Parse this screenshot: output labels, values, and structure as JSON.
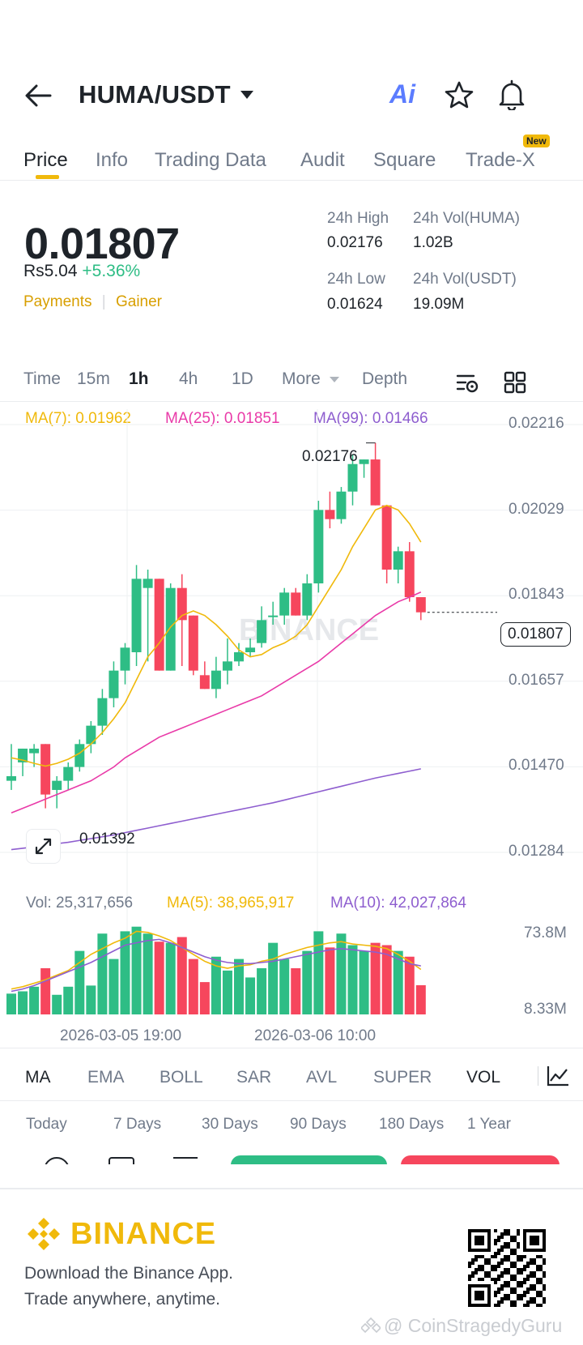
{
  "header": {
    "pair": "HUMA/USDT",
    "ai_label": "Ai"
  },
  "tabs": [
    {
      "label": "Price",
      "active": true
    },
    {
      "label": "Info"
    },
    {
      "label": "Trading Data"
    },
    {
      "label": "Audit"
    },
    {
      "label": "Square"
    },
    {
      "label": "Trade-X",
      "badge": "New"
    }
  ],
  "price": {
    "last": "0.01807",
    "fiat": "Rs5.04",
    "change": "+5.36%",
    "tags": [
      "Payments",
      "Gainer"
    ]
  },
  "stats": {
    "high_label": "24h High",
    "high": "0.02176",
    "vol_base_label": "24h Vol(HUMA)",
    "vol_base": "1.02B",
    "low_label": "24h Low",
    "low": "0.01624",
    "vol_quote_label": "24h Vol(USDT)",
    "vol_quote": "19.09M"
  },
  "intervals": {
    "items": [
      "Time",
      "15m",
      "1h",
      "4h",
      "1D",
      "More",
      "Depth"
    ],
    "active": "1h"
  },
  "ma_legend": {
    "ma7": "MA(7): 0.01962",
    "ma25": "MA(25): 0.01851",
    "ma99": "MA(99): 0.01466"
  },
  "price_axis": [
    "0.02216",
    "0.02029",
    "0.01843",
    "0.01657",
    "0.01470",
    "0.01284"
  ],
  "markers": {
    "high": "0.02176",
    "low": "0.01392",
    "current": "0.01807"
  },
  "watermark": "BINANCE",
  "volume_legend": {
    "vol": "Vol: 25,317,656",
    "ma5": "MA(5): 38,965,917",
    "ma10": "MA(10): 42,027,864"
  },
  "volume_axis": [
    "73.8M",
    "8.33M"
  ],
  "time_axis": [
    "2026-03-05 19:00",
    "2026-03-06 10:00"
  ],
  "indicators": {
    "items": [
      "MA",
      "EMA",
      "BOLL",
      "SAR",
      "AVL",
      "SUPER",
      "VOL"
    ],
    "active": [
      "MA",
      "VOL"
    ]
  },
  "performance": [
    "Today",
    "7 Days",
    "30 Days",
    "90 Days",
    "180 Days",
    "1 Year"
  ],
  "footer": {
    "brand": "BINANCE",
    "line1": "Download the Binance App.",
    "line2": "Trade anywhere, anytime.",
    "credit": "@ CoinStragedyGuru"
  },
  "colors": {
    "up": "#2ebd85",
    "down": "#f6465d",
    "ma7": "#f0b90b",
    "ma25": "#e93aa8",
    "ma99": "#8e5ecf",
    "brand": "#f0b90b"
  },
  "chart_data": {
    "type": "candlestick",
    "interval": "1h",
    "ylim": [
      0.01284,
      0.02216
    ],
    "candles": [
      {
        "o": 0.0144,
        "h": 0.0152,
        "l": 0.0142,
        "c": 0.0145
      },
      {
        "o": 0.0148,
        "h": 0.0151,
        "l": 0.0145,
        "c": 0.0151
      },
      {
        "o": 0.015,
        "h": 0.0152,
        "l": 0.0147,
        "c": 0.0151
      },
      {
        "o": 0.0152,
        "h": 0.0152,
        "l": 0.0138,
        "c": 0.0141
      },
      {
        "o": 0.0142,
        "h": 0.0145,
        "l": 0.0138,
        "c": 0.0144
      },
      {
        "o": 0.0144,
        "h": 0.0148,
        "l": 0.0142,
        "c": 0.0147
      },
      {
        "o": 0.0147,
        "h": 0.0153,
        "l": 0.0146,
        "c": 0.0152
      },
      {
        "o": 0.0152,
        "h": 0.0157,
        "l": 0.015,
        "c": 0.0156
      },
      {
        "o": 0.0156,
        "h": 0.0164,
        "l": 0.0154,
        "c": 0.0162
      },
      {
        "o": 0.0162,
        "h": 0.017,
        "l": 0.016,
        "c": 0.0168
      },
      {
        "o": 0.0168,
        "h": 0.0174,
        "l": 0.0165,
        "c": 0.0173
      },
      {
        "o": 0.0172,
        "h": 0.0191,
        "l": 0.0169,
        "c": 0.0188
      },
      {
        "o": 0.0186,
        "h": 0.019,
        "l": 0.017,
        "c": 0.0188
      },
      {
        "o": 0.0188,
        "h": 0.0188,
        "l": 0.0168,
        "c": 0.0168
      },
      {
        "o": 0.0168,
        "h": 0.0187,
        "l": 0.0168,
        "c": 0.0186
      },
      {
        "o": 0.0186,
        "h": 0.0189,
        "l": 0.0169,
        "c": 0.0179
      },
      {
        "o": 0.018,
        "h": 0.018,
        "l": 0.0167,
        "c": 0.0168
      },
      {
        "o": 0.0167,
        "h": 0.017,
        "l": 0.0164,
        "c": 0.0164
      },
      {
        "o": 0.0164,
        "h": 0.0171,
        "l": 0.0162,
        "c": 0.0168
      },
      {
        "o": 0.0168,
        "h": 0.0175,
        "l": 0.0165,
        "c": 0.017
      },
      {
        "o": 0.017,
        "h": 0.0174,
        "l": 0.0169,
        "c": 0.0172
      },
      {
        "o": 0.0172,
        "h": 0.0175,
        "l": 0.0171,
        "c": 0.0173
      },
      {
        "o": 0.0174,
        "h": 0.0182,
        "l": 0.0173,
        "c": 0.0179
      },
      {
        "o": 0.018,
        "h": 0.0183,
        "l": 0.0178,
        "c": 0.018
      },
      {
        "o": 0.018,
        "h": 0.0186,
        "l": 0.0178,
        "c": 0.0185
      },
      {
        "o": 0.0185,
        "h": 0.0186,
        "l": 0.018,
        "c": 0.018
      },
      {
        "o": 0.018,
        "h": 0.0189,
        "l": 0.0179,
        "c": 0.0187
      },
      {
        "o": 0.0187,
        "h": 0.0205,
        "l": 0.0185,
        "c": 0.0203
      },
      {
        "o": 0.0203,
        "h": 0.0207,
        "l": 0.0199,
        "c": 0.0201
      },
      {
        "o": 0.0201,
        "h": 0.0208,
        "l": 0.02,
        "c": 0.0207
      },
      {
        "o": 0.0207,
        "h": 0.0215,
        "l": 0.0204,
        "c": 0.0213
      },
      {
        "o": 0.0213,
        "h": 0.0214,
        "l": 0.021,
        "c": 0.0214
      },
      {
        "o": 0.0214,
        "h": 0.02176,
        "l": 0.0204,
        "c": 0.0204
      },
      {
        "o": 0.0204,
        "h": 0.0204,
        "l": 0.0187,
        "c": 0.019
      },
      {
        "o": 0.019,
        "h": 0.0195,
        "l": 0.0187,
        "c": 0.0194
      },
      {
        "o": 0.0194,
        "h": 0.0196,
        "l": 0.0183,
        "c": 0.0184
      },
      {
        "o": 0.0184,
        "h": 0.0184,
        "l": 0.0179,
        "c": 0.01807
      }
    ],
    "ma7_line": [
      0.0149,
      0.01485,
      0.01478,
      0.01472,
      0.01478,
      0.01487,
      0.015,
      0.0152,
      0.01545,
      0.01575,
      0.0161,
      0.0166,
      0.0171,
      0.0174,
      0.01775,
      0.018,
      0.0181,
      0.018,
      0.0178,
      0.01755,
      0.01725,
      0.0171,
      0.01715,
      0.0173,
      0.0174,
      0.01755,
      0.0178,
      0.0182,
      0.0186,
      0.019,
      0.0195,
      0.0199,
      0.0203,
      0.0204,
      0.0203,
      0.02,
      0.0196
    ],
    "ma25_line": [
      0.0137,
      0.0138,
      0.0139,
      0.014,
      0.0141,
      0.0142,
      0.0143,
      0.0144,
      0.01455,
      0.0147,
      0.0149,
      0.01505,
      0.0152,
      0.01535,
      0.01545,
      0.01555,
      0.01565,
      0.01575,
      0.01585,
      0.01595,
      0.01605,
      0.01615,
      0.01625,
      0.0164,
      0.01655,
      0.0167,
      0.01685,
      0.017,
      0.0172,
      0.0174,
      0.0176,
      0.0178,
      0.018,
      0.01815,
      0.0183,
      0.0184,
      0.01851
    ],
    "ma99_line": [
      0.0129,
      0.01293,
      0.01296,
      0.013,
      0.01303,
      0.01306,
      0.0131,
      0.01314,
      0.01318,
      0.01322,
      0.01327,
      0.01332,
      0.01337,
      0.01342,
      0.01347,
      0.01352,
      0.01357,
      0.01362,
      0.01367,
      0.01372,
      0.01377,
      0.01382,
      0.01387,
      0.01392,
      0.01398,
      0.01404,
      0.0141,
      0.01416,
      0.01422,
      0.01428,
      0.01434,
      0.0144,
      0.01446,
      0.01451,
      0.01456,
      0.01461,
      0.01466
    ],
    "volume_ylim": [
      0,
      80000000
    ],
    "volumes": [
      18000000,
      20000000,
      24000000,
      40000000,
      17000000,
      24000000,
      55000000,
      25000000,
      70000000,
      48000000,
      72000000,
      76000000,
      70000000,
      63000000,
      62000000,
      67000000,
      48000000,
      28000000,
      50000000,
      38000000,
      48000000,
      32000000,
      40000000,
      62000000,
      48000000,
      40000000,
      55000000,
      72000000,
      58000000,
      70000000,
      60000000,
      55000000,
      62000000,
      60000000,
      55000000,
      50000000,
      25317656
    ],
    "vol_ma5": [
      22000000,
      24000000,
      27000000,
      30000000,
      34000000,
      38000000,
      45000000,
      52000000,
      57000000,
      62000000,
      66000000,
      72000000,
      71000000,
      68000000,
      64000000,
      58000000,
      52000000,
      46000000,
      42000000,
      40000000,
      42000000,
      43000000,
      46000000,
      48000000,
      52000000,
      55000000,
      58000000,
      60000000,
      62000000,
      63000000,
      61000000,
      60000000,
      59000000,
      57000000,
      52000000,
      46000000,
      38965917
    ],
    "vol_ma10": [
      20000000,
      22000000,
      25000000,
      29000000,
      33000000,
      37000000,
      41000000,
      45000000,
      50000000,
      55000000,
      60000000,
      62000000,
      64000000,
      65000000,
      62000000,
      58000000,
      54000000,
      50000000,
      47000000,
      45000000,
      44000000,
      44000000,
      45000000,
      46000000,
      48000000,
      50000000,
      52000000,
      54000000,
      56000000,
      57000000,
      56000000,
      55000000,
      54000000,
      52000000,
      48000000,
      44000000,
      42027864
    ]
  }
}
